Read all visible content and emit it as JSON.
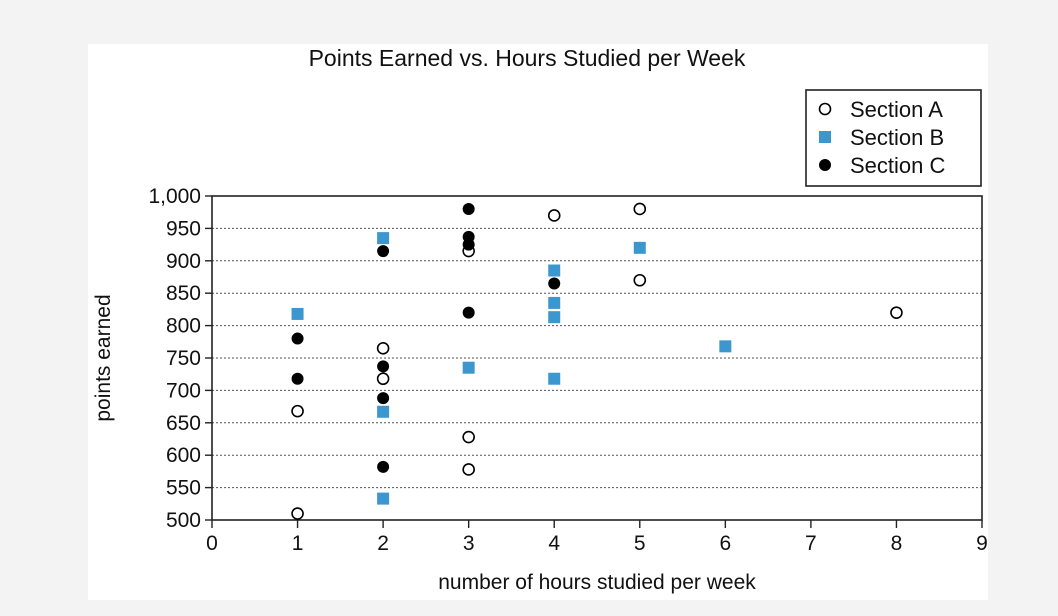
{
  "chart_data": {
    "type": "scatter",
    "title": "Points Earned vs. Hours Studied per Week",
    "xlabel": "number of hours studied per week",
    "ylabel": "points earned",
    "xlim": [
      0,
      9
    ],
    "ylim": [
      500,
      1000
    ],
    "x_ticks": [
      "0",
      "1",
      "2",
      "3",
      "4",
      "5",
      "6",
      "7",
      "8",
      "9"
    ],
    "y_ticks": [
      {
        "value": 500,
        "label": "500"
      },
      {
        "value": 550,
        "label": "550"
      },
      {
        "value": 600,
        "label": "600"
      },
      {
        "value": 650,
        "label": "650"
      },
      {
        "value": 700,
        "label": "700"
      },
      {
        "value": 750,
        "label": "750"
      },
      {
        "value": 800,
        "label": "800"
      },
      {
        "value": 850,
        "label": "850"
      },
      {
        "value": 900,
        "label": "900"
      },
      {
        "value": 950,
        "label": "950"
      },
      {
        "value": 1000,
        "label": "1,000"
      }
    ],
    "grid": "horizontal dotted",
    "legend_position": "top-right",
    "series": [
      {
        "name": "Section A",
        "marker": "open-circle",
        "color": "#000000",
        "points": [
          {
            "x": 1,
            "y": 510
          },
          {
            "x": 1,
            "y": 668
          },
          {
            "x": 2,
            "y": 718
          },
          {
            "x": 2,
            "y": 765
          },
          {
            "x": 3,
            "y": 578
          },
          {
            "x": 3,
            "y": 628
          },
          {
            "x": 3,
            "y": 915
          },
          {
            "x": 4,
            "y": 970
          },
          {
            "x": 5,
            "y": 870
          },
          {
            "x": 5,
            "y": 980
          },
          {
            "x": 8,
            "y": 820
          }
        ]
      },
      {
        "name": "Section B",
        "marker": "square",
        "color": "#3d97cf",
        "points": [
          {
            "x": 1,
            "y": 818
          },
          {
            "x": 2,
            "y": 533
          },
          {
            "x": 2,
            "y": 667
          },
          {
            "x": 2,
            "y": 935
          },
          {
            "x": 3,
            "y": 735
          },
          {
            "x": 4,
            "y": 718
          },
          {
            "x": 4,
            "y": 813
          },
          {
            "x": 4,
            "y": 835
          },
          {
            "x": 4,
            "y": 885
          },
          {
            "x": 5,
            "y": 920
          },
          {
            "x": 6,
            "y": 768
          }
        ]
      },
      {
        "name": "Section C",
        "marker": "filled-circle",
        "color": "#000000",
        "points": [
          {
            "x": 1,
            "y": 718
          },
          {
            "x": 1,
            "y": 780
          },
          {
            "x": 2,
            "y": 582
          },
          {
            "x": 2,
            "y": 688
          },
          {
            "x": 2,
            "y": 737
          },
          {
            "x": 2,
            "y": 915
          },
          {
            "x": 3,
            "y": 820
          },
          {
            "x": 3,
            "y": 925
          },
          {
            "x": 3,
            "y": 937
          },
          {
            "x": 3,
            "y": 980
          },
          {
            "x": 4,
            "y": 865
          }
        ]
      }
    ]
  }
}
